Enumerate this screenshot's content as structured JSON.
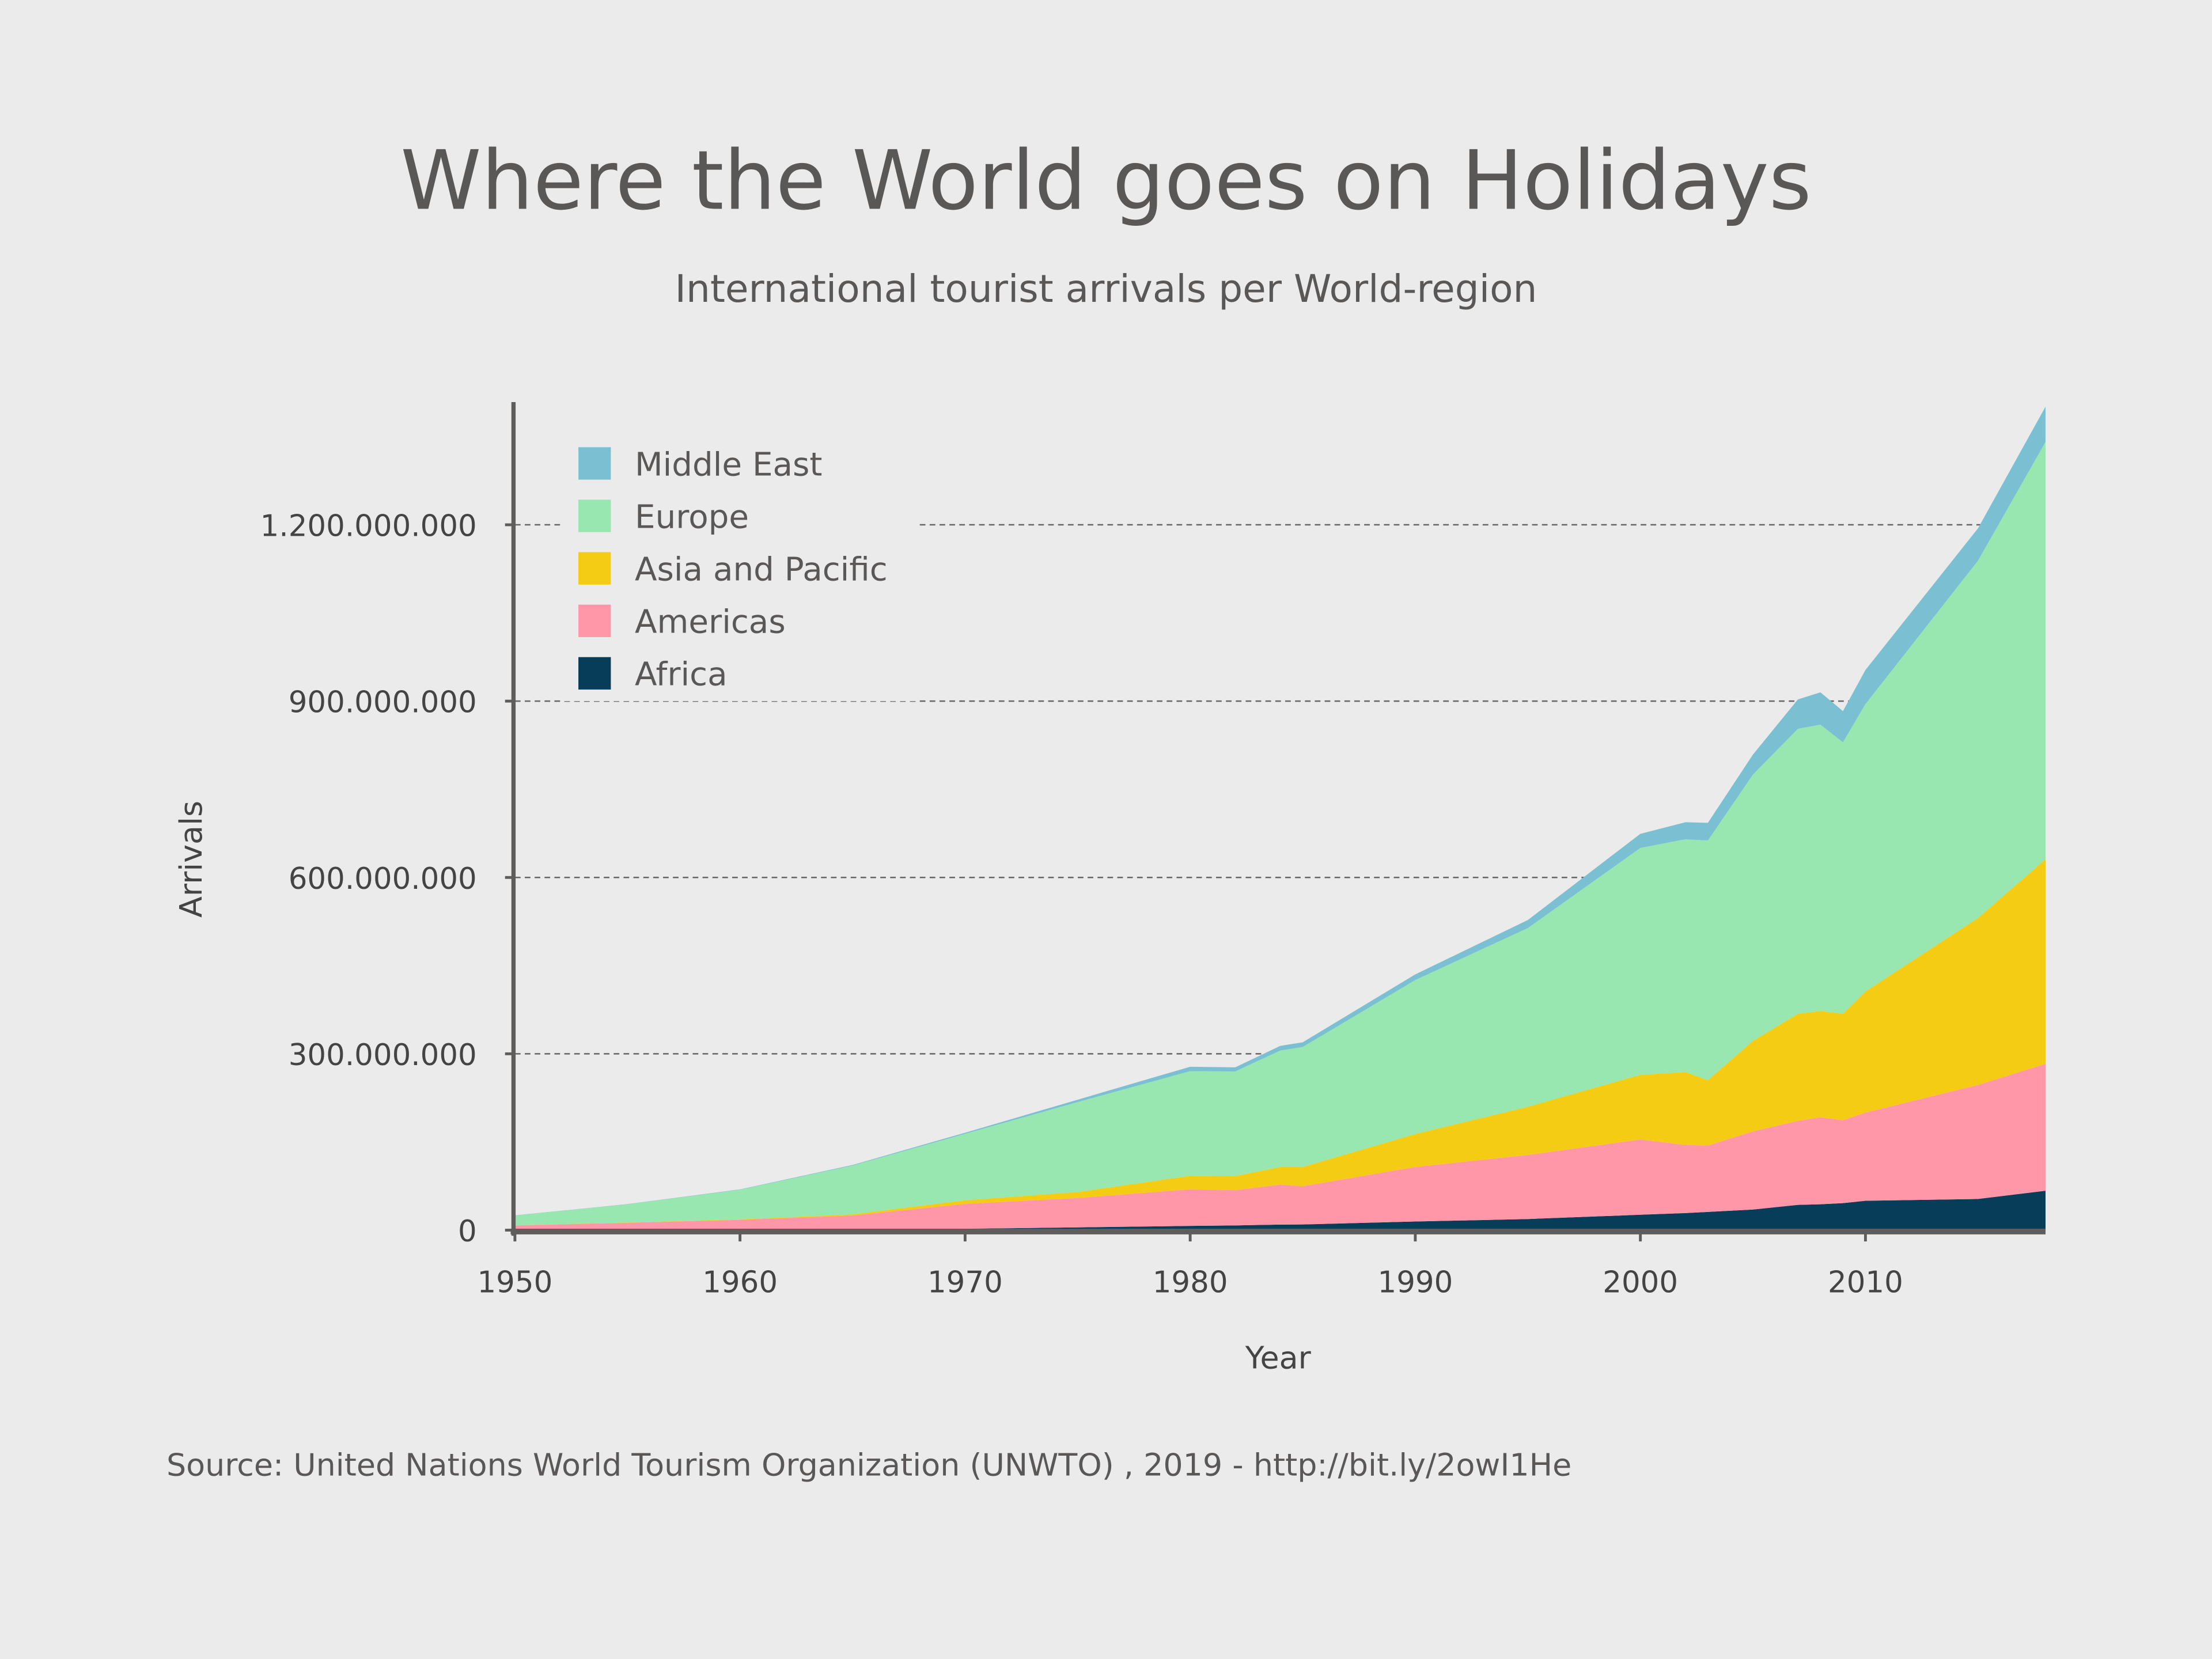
{
  "chart_data": {
    "type": "area",
    "stacked": true,
    "title": "Where the World goes on Holidays",
    "subtitle": "International tourist arrivals per World-region",
    "xlabel": "Year",
    "ylabel": "Arrivals",
    "xlim": [
      1950,
      2018
    ],
    "ylim": [
      0,
      1400000000
    ],
    "x_ticks": [
      "1950",
      "1960",
      "1970",
      "1980",
      "1990",
      "2000",
      "2010"
    ],
    "y_ticks": [
      {
        "value": 0,
        "label": "0"
      },
      {
        "value": 300000000,
        "label": "300.000.000"
      },
      {
        "value": 600000000,
        "label": "600.000.000"
      },
      {
        "value": 900000000,
        "label": "900.000.000"
      },
      {
        "value": 1200000000,
        "label": "1.200.000.000"
      }
    ],
    "grid": "horizontal dashed",
    "legend_position": "top-left",
    "x": [
      1950,
      1955,
      1960,
      1965,
      1970,
      1975,
      1980,
      1982,
      1984,
      1985,
      1990,
      1995,
      2000,
      2002,
      2003,
      2005,
      2007,
      2008,
      2009,
      2010,
      2015,
      2018
    ],
    "series": [
      {
        "name": "Africa",
        "color": "#073d58",
        "values": [
          0.5,
          0.6,
          0.8,
          1.4,
          2.4,
          4.7,
          7.2,
          8,
          9.5,
          9.7,
          14.7,
          18.9,
          26.2,
          29,
          31,
          35,
          43,
          44,
          46,
          50,
          53,
          67
        ]
      },
      {
        "name": "Americas",
        "color": "#ff97a8",
        "values": [
          7.5,
          12,
          16.7,
          23.5,
          42.3,
          50,
          62.3,
          60,
          68,
          65,
          92.8,
          109,
          128,
          116,
          113,
          133,
          143,
          148,
          141,
          150,
          194,
          216
        ]
      },
      {
        "name": "Asia and Pacific",
        "color": "#f5cc14",
        "values": [
          0.2,
          0.4,
          0.9,
          2,
          6.2,
          10.2,
          23,
          24,
          30,
          32.9,
          56,
          82,
          110,
          124,
          111,
          154,
          182,
          181,
          181,
          206,
          284,
          348
        ]
      },
      {
        "name": "Europe",
        "color": "#98e6b0",
        "values": [
          16.8,
          31,
          50.4,
          83,
          113,
          153,
          178,
          178,
          198,
          204,
          262,
          304,
          386,
          396,
          408,
          453,
          485,
          487,
          462,
          489,
          608,
          710
        ]
      },
      {
        "name": "Middle East",
        "color": "#7bc0d2",
        "values": [
          0.2,
          0.3,
          0.6,
          1,
          1.9,
          4,
          7.5,
          7,
          8,
          8,
          9.6,
          13.7,
          24.1,
          29,
          30,
          34,
          50,
          55,
          53,
          58,
          55,
          60
        ]
      }
    ],
    "value_unit_multiplier": 1000000
  },
  "source": "Source: United Nations World Tourism Organization (UNWTO) , 2019 - http://bit.ly/2owI1He"
}
